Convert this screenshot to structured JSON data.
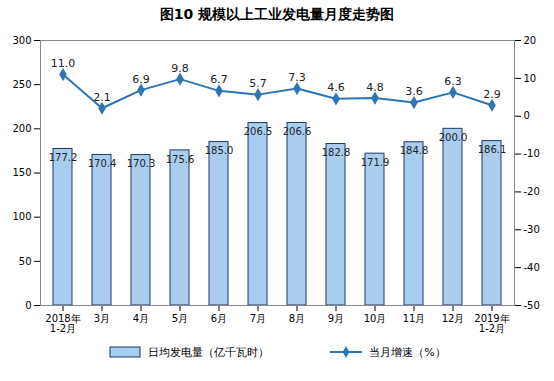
{
  "chart_data": {
    "type": "bar",
    "title": "图10 规模以上工业发电量月度走势图",
    "categories": [
      "2018年\n1-2月",
      "3月",
      "4月",
      "5月",
      "6月",
      "7月",
      "8月",
      "9月",
      "10月",
      "11月",
      "12月",
      "2019年\n1-2月"
    ],
    "series": [
      {
        "name": "日均发电量（亿千瓦时）",
        "type": "bar",
        "color": "#a9cdef",
        "values": [
          177.2,
          170.4,
          170.3,
          175.6,
          185.0,
          206.5,
          206.6,
          182.8,
          171.9,
          184.8,
          200.0,
          186.1
        ],
        "value_labels": [
          "177.2",
          "170.4",
          "170.3",
          "175.6",
          "185.0",
          "206.5",
          "206.6",
          "182.8",
          "171.9",
          "184.8",
          "200.0",
          "186.1"
        ]
      },
      {
        "name": "当月增速（%）",
        "type": "line",
        "axis": "y2",
        "color": "#2e75b6",
        "marker": "diamond",
        "values": [
          11.0,
          2.1,
          6.9,
          9.8,
          6.7,
          5.7,
          7.3,
          4.6,
          4.8,
          3.6,
          6.3,
          2.9
        ],
        "value_labels": [
          "11.0",
          "2.1",
          "6.9",
          "9.8",
          "6.7",
          "5.7",
          "7.3",
          "4.6",
          "4.8",
          "3.6",
          "6.3",
          "2.9"
        ]
      }
    ],
    "ylim": [
      0,
      300
    ],
    "yticks": [
      0,
      50,
      100,
      150,
      200,
      250,
      300
    ],
    "y2lim": [
      -50,
      20
    ],
    "y2ticks": [
      -50,
      -40,
      -30,
      -20,
      -10,
      0,
      10,
      20
    ],
    "grid": false,
    "data_labels": true,
    "legend": "bottom"
  }
}
